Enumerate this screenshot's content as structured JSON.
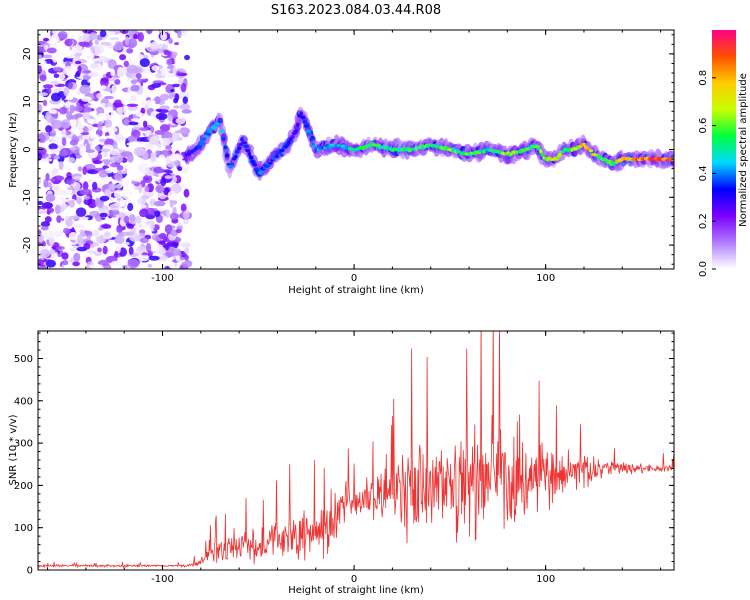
{
  "title": "S163.2023.084.03.44.R08",
  "chart_data": [
    {
      "type": "heatmap",
      "xlabel": "Height of straight line (km)",
      "ylabel": "Frequency (Hz)",
      "xlim": [
        -165,
        167
      ],
      "ylim": [
        -25,
        25
      ],
      "xticks": [
        -100,
        0,
        100
      ],
      "yticks": [
        -20,
        -10,
        0,
        10,
        20
      ],
      "grid": false,
      "colorbar": {
        "label": "Normalized spectral amplitude",
        "range": [
          0,
          1
        ],
        "ticks": [
          0.0,
          0.2,
          0.4,
          0.6,
          0.8
        ],
        "tick_labels": [
          "0.0",
          "0.2",
          "0.4",
          "0.6",
          "0.8"
        ],
        "colors": [
          "#ffffff",
          "#b07cff",
          "#7a00ff",
          "#0000ff",
          "#00d8ff",
          "#00ff40",
          "#c8ff00",
          "#ffcc00",
          "#ff5000",
          "#ff0088"
        ]
      },
      "noise_region_x": [
        -165,
        -87
      ],
      "signal_track": {
        "x": [
          -87,
          -80,
          -75,
          -70,
          -65,
          -58,
          -50,
          -42,
          -35,
          -30,
          -28,
          -20,
          -10,
          0,
          10,
          20,
          30,
          40,
          50,
          60,
          70,
          80,
          90,
          95,
          100,
          105,
          110,
          115,
          120,
          125,
          130,
          135,
          140,
          145,
          150,
          160,
          167
        ],
        "freq": [
          -1,
          1,
          4,
          6,
          -4,
          2,
          -5,
          -2,
          1,
          4,
          8,
          0,
          1,
          0,
          1,
          0,
          0,
          1,
          0,
          -1,
          0,
          -1,
          0,
          1,
          -2,
          -2,
          0,
          0,
          1,
          -1,
          -2,
          -3,
          -2,
          -2,
          -2,
          -2,
          -2
        ],
        "amplitude": [
          0.3,
          0.4,
          0.5,
          0.45,
          0.4,
          0.35,
          0.4,
          0.4,
          0.35,
          0.3,
          0.35,
          0.45,
          0.5,
          0.55,
          0.6,
          0.55,
          0.6,
          0.6,
          0.65,
          0.6,
          0.55,
          0.7,
          0.65,
          0.6,
          0.75,
          0.8,
          0.6,
          0.7,
          0.85,
          0.75,
          0.65,
          0.55,
          0.9,
          0.95,
          0.95,
          0.95,
          0.9
        ]
      }
    },
    {
      "type": "line",
      "xlabel": "Height of straight line (km)",
      "ylabel": "SNR (10 * v/v)",
      "xlim": [
        -165,
        167
      ],
      "ylim": [
        0,
        565
      ],
      "xticks": [
        -100,
        0,
        100
      ],
      "yticks": [
        0,
        100,
        200,
        300,
        400,
        500
      ],
      "grid": false,
      "color": "#ee3333",
      "envelope": {
        "x": [
          -165,
          -100,
          -87,
          -80,
          -75,
          -70,
          -60,
          -50,
          -40,
          -30,
          -20,
          -10,
          -5,
          0,
          10,
          20,
          30,
          40,
          50,
          60,
          70,
          80,
          85,
          90,
          100,
          110,
          120,
          130,
          140,
          150,
          167
        ],
        "baseline": [
          10,
          10,
          10,
          20,
          40,
          50,
          60,
          55,
          70,
          80,
          90,
          120,
          160,
          160,
          170,
          190,
          200,
          210,
          210,
          205,
          210,
          215,
          220,
          215,
          220,
          230,
          235,
          240,
          240,
          240,
          240
        ],
        "spread": [
          5,
          5,
          6,
          15,
          35,
          60,
          70,
          70,
          80,
          100,
          110,
          130,
          100,
          60,
          110,
          150,
          200,
          200,
          190,
          220,
          240,
          250,
          300,
          200,
          120,
          100,
          80,
          40,
          30,
          20,
          20
        ]
      }
    }
  ]
}
